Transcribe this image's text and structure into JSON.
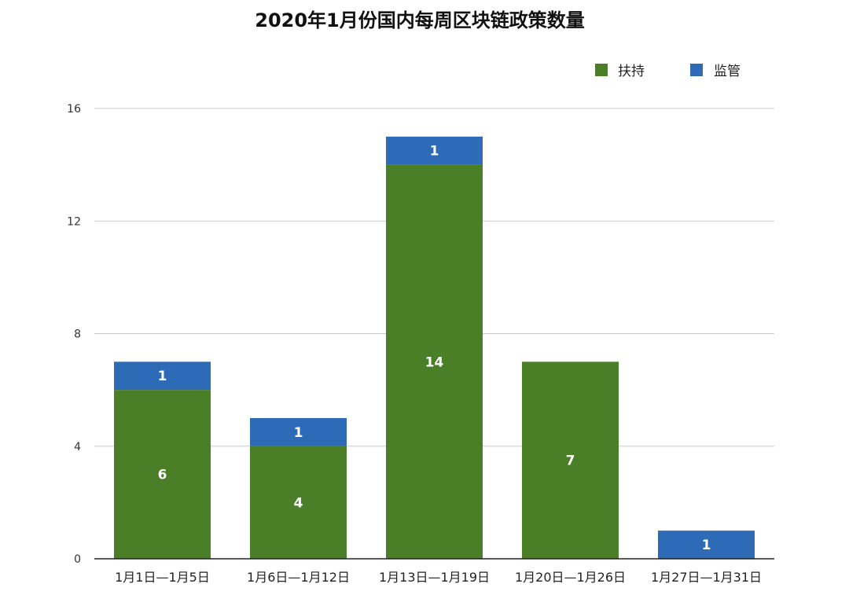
{
  "chart_data": {
    "type": "bar",
    "stacked": true,
    "title": "2020年1月份国内每周区块链政策数量",
    "categories": [
      "1月1日—1月5日",
      "1月6日—1月12日",
      "1月13日—1月19日",
      "1月20日—1月26日",
      "1月27日—1月31日"
    ],
    "series": [
      {
        "name": "扶持",
        "color": "#4a7f28",
        "values": [
          6,
          4,
          14,
          7,
          0
        ]
      },
      {
        "name": "监管",
        "color": "#2e6bb6",
        "values": [
          1,
          1,
          1,
          0,
          1
        ]
      }
    ],
    "y_ticks": [
      0,
      4,
      8,
      12,
      16
    ],
    "ylim": [
      0,
      16
    ],
    "grid": true,
    "legend_position": "top-right"
  }
}
